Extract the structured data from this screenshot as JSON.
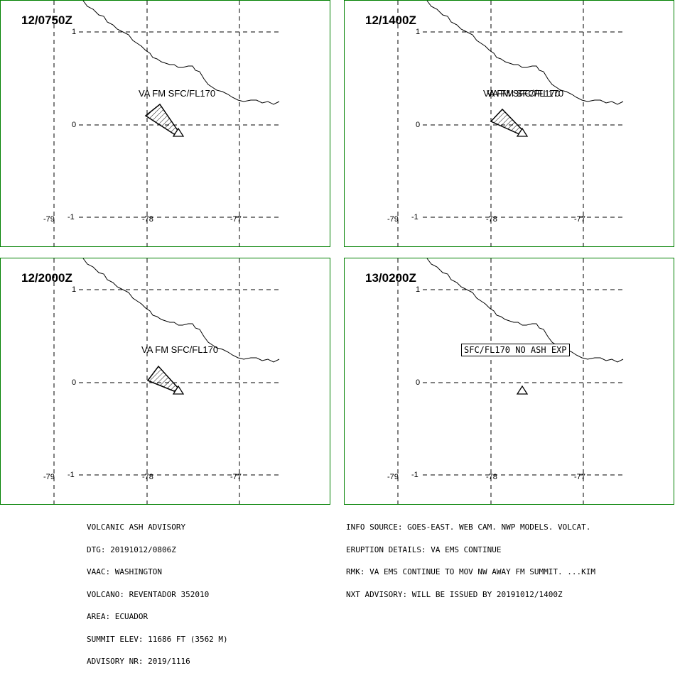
{
  "panels": [
    {
      "time": "12/0750Z",
      "y_labels": [
        "1",
        "0",
        "-1"
      ],
      "x_labels": [
        "-79",
        "-78",
        "-77"
      ],
      "ash_label": "VA FM SFC/FL170",
      "ash_label_overlap": false,
      "box_label": ""
    },
    {
      "time": "12/1400Z",
      "y_labels": [
        "1",
        "0",
        "-1"
      ],
      "x_labels": [
        "-79",
        "-78",
        "-77"
      ],
      "ash_label": "VA FM SFC/FL170",
      "ash_label_overlap": true,
      "box_label": ""
    },
    {
      "time": "12/2000Z",
      "y_labels": [
        "1",
        "0",
        "-1"
      ],
      "x_labels": [
        "-79",
        "-78",
        "-77"
      ],
      "ash_label": "VA FM SFC/FL170",
      "ash_label_overlap": false,
      "box_label": ""
    },
    {
      "time": "13/0200Z",
      "y_labels": [
        "1",
        "0",
        "-1"
      ],
      "x_labels": [
        "-79",
        "-78",
        "-77"
      ],
      "ash_label": "",
      "ash_label_overlap": false,
      "box_label": "SFC/FL170 NO ASH EXP"
    }
  ],
  "advisory_left": [
    "VOLCANIC ASH ADVISORY",
    "DTG: 20191012/0806Z",
    "VAAC: WASHINGTON",
    "VOLCANO: REVENTADOR 352010",
    "AREA: ECUADOR",
    "SUMMIT ELEV: 11686 FT (3562 M)",
    "ADVISORY NR: 2019/1116"
  ],
  "advisory_right": [
    "INFO SOURCE: GOES-EAST. WEB CAM. NWP MODELS. VOLCAT.",
    "ERUPTION DETAILS: VA EMS CONTINUE",
    "RMK: VA EMS CONTINUE TO MOV NW AWAY FM SUMMIT. ...KIM",
    "NXT ADVISORY: WILL BE ISSUED BY 20191012/1400Z"
  ],
  "colors": {
    "border": "#008000",
    "lines": "#000000"
  }
}
